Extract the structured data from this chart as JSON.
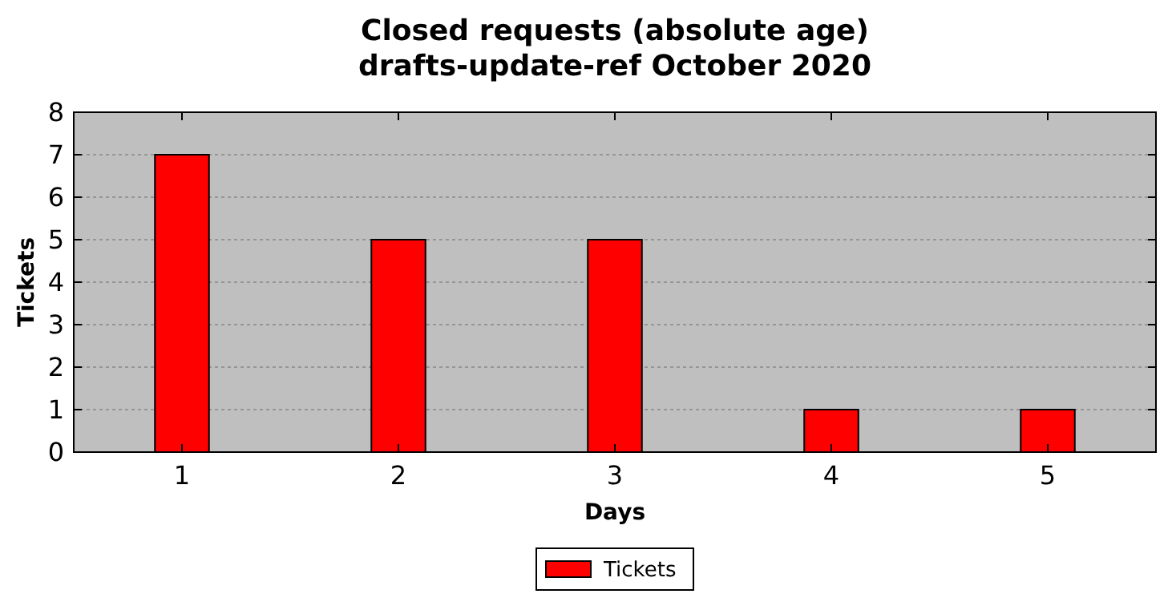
{
  "chart_data": {
    "type": "bar",
    "title": "Closed requests (absolute age)\ndrafts-update-ref October 2020",
    "xlabel": "Days",
    "ylabel": "Tickets",
    "categories": [
      "1",
      "2",
      "3",
      "4",
      "5"
    ],
    "series": [
      {
        "name": "Tickets",
        "color": "#ff0000",
        "values": [
          7,
          5,
          5,
          1,
          1
        ]
      }
    ],
    "ylim": [
      0,
      8
    ],
    "yticks": [
      0,
      1,
      2,
      3,
      4,
      5,
      6,
      7,
      8
    ],
    "grid": "y",
    "legend": "bottom"
  }
}
